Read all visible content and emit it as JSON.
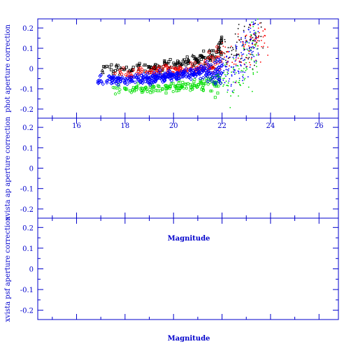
{
  "colors": {
    "axis": "#0000cc",
    "series": [
      "#000000",
      "#ff0000",
      "#00dd00",
      "#0000ff"
    ]
  },
  "chart_data": [
    {
      "type": "scatter",
      "panel": "top",
      "ylabel": "phot aperture correction",
      "xlim": [
        14.4,
        26.8
      ],
      "ylim": [
        -0.245,
        0.245
      ],
      "xticks": [
        "16",
        "18",
        "20",
        "22",
        "24",
        "26"
      ],
      "yticks": [
        "0.2",
        "0.1",
        "0",
        "-0.1",
        "-0.2"
      ],
      "grid": false,
      "series": [
        {
          "color": "#000000",
          "marker": "square/triangle",
          "trend": [
            [
              17.0,
              0.0
            ],
            [
              19.0,
              0.0
            ],
            [
              21.0,
              0.04
            ],
            [
              22.5,
              0.12
            ],
            [
              23.5,
              0.2
            ]
          ]
        },
        {
          "color": "#ff0000",
          "marker": "circle",
          "trend": [
            [
              17.5,
              -0.03
            ],
            [
              19.0,
              -0.02
            ],
            [
              21.0,
              0.0
            ],
            [
              22.5,
              0.06
            ],
            [
              23.7,
              0.2
            ]
          ]
        },
        {
          "color": "#00dd00",
          "marker": "square/star",
          "trend": [
            [
              17.5,
              -0.1
            ],
            [
              19.5,
              -0.1
            ],
            [
              21.0,
              -0.08
            ],
            [
              22.5,
              -0.06
            ],
            [
              23.3,
              0.1
            ]
          ]
        },
        {
          "color": "#0000ff",
          "marker": "diamond/star",
          "trend": [
            [
              16.8,
              -0.06
            ],
            [
              19.0,
              -0.05
            ],
            [
              21.0,
              -0.02
            ],
            [
              22.5,
              0.0
            ],
            [
              23.3,
              0.15
            ]
          ]
        }
      ]
    },
    {
      "type": "scatter",
      "panel": "middle",
      "ylabel": "xvista ap aperture correction",
      "xlabel": "Magnitude",
      "xlim": [
        14.4,
        26.8
      ],
      "ylim": [
        -0.245,
        0.245
      ],
      "yticks": [
        "0.2",
        "0.1",
        "0",
        "-0.1",
        "-0.2"
      ],
      "series": []
    },
    {
      "type": "scatter",
      "panel": "bottom",
      "ylabel": "xvista psf aperture correction",
      "xlabel": "Magnitude",
      "xlim": [
        14.4,
        26.8
      ],
      "ylim": [
        -0.245,
        0.245
      ],
      "yticks": [
        "0.2",
        "0.1",
        "0",
        "-0.1",
        "-0.2"
      ],
      "series": []
    }
  ]
}
